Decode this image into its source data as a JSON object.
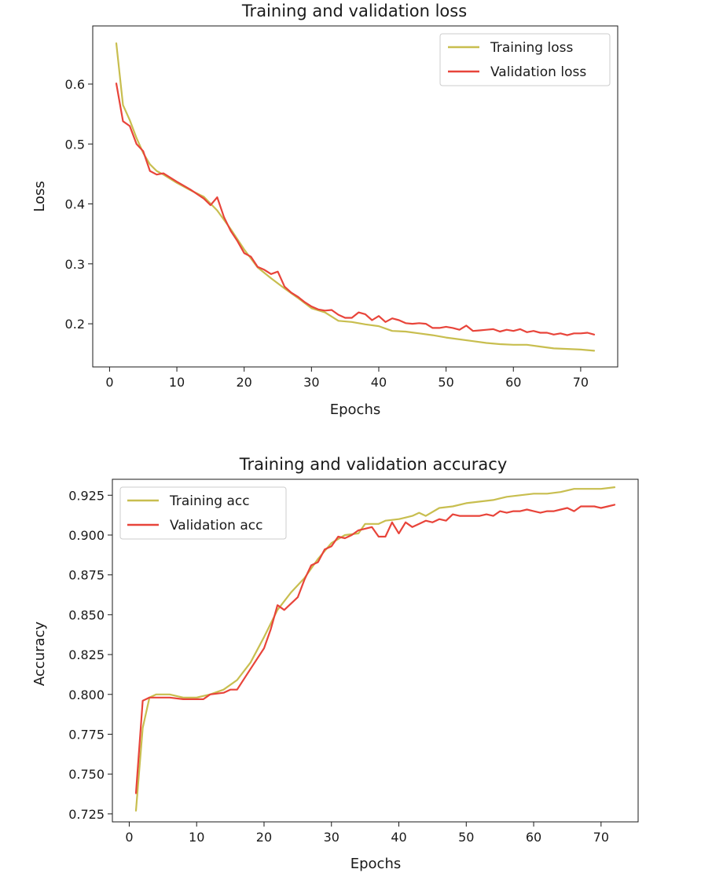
{
  "colors": {
    "training": "#c8be4f",
    "validation": "#e8443a",
    "frame": "#1a1a1a",
    "legend_border": "#cccccc"
  },
  "chart_data": [
    {
      "type": "line",
      "title": "Training and validation loss",
      "xlabel": "Epochs",
      "ylabel": "Loss",
      "xlim": [
        -2.5,
        75.5
      ],
      "ylim": [
        0.128,
        0.697
      ],
      "xticks": [
        0,
        10,
        20,
        30,
        40,
        50,
        60,
        70
      ],
      "yticks": [
        0.2,
        0.3,
        0.4,
        0.5,
        0.6
      ],
      "ytick_labels": [
        "0.2",
        "0.3",
        "0.4",
        "0.5",
        "0.6"
      ],
      "legend": "top-right",
      "grid": false,
      "series": [
        {
          "name": "Training loss",
          "color": "#c8be4f",
          "x": [
            1,
            2,
            3,
            4,
            5,
            6,
            7,
            8,
            10,
            12,
            14,
            16,
            18,
            20,
            22,
            24,
            26,
            28,
            30,
            32,
            34,
            36,
            38,
            40,
            42,
            44,
            46,
            48,
            50,
            52,
            54,
            56,
            58,
            60,
            62,
            64,
            66,
            68,
            70,
            72
          ],
          "y": [
            0.668,
            0.565,
            0.54,
            0.51,
            0.485,
            0.466,
            0.455,
            0.449,
            0.435,
            0.423,
            0.412,
            0.389,
            0.358,
            0.324,
            0.294,
            0.276,
            0.259,
            0.243,
            0.226,
            0.219,
            0.205,
            0.203,
            0.199,
            0.196,
            0.188,
            0.187,
            0.184,
            0.181,
            0.177,
            0.174,
            0.171,
            0.168,
            0.166,
            0.165,
            0.165,
            0.162,
            0.159,
            0.158,
            0.157,
            0.155
          ]
        },
        {
          "name": "Validation loss",
          "color": "#e8443a",
          "x": [
            1,
            2,
            3,
            4,
            5,
            6,
            7,
            8,
            10,
            12,
            14,
            15,
            16,
            17,
            18,
            19,
            20,
            21,
            22,
            23,
            24,
            25,
            26,
            27,
            28,
            29,
            30,
            31,
            32,
            33,
            34,
            35,
            36,
            37,
            38,
            39,
            40,
            41,
            42,
            43,
            44,
            45,
            46,
            47,
            48,
            49,
            50,
            51,
            52,
            53,
            54,
            55,
            56,
            57,
            58,
            59,
            60,
            61,
            62,
            63,
            64,
            65,
            66,
            67,
            68,
            69,
            70,
            71,
            72
          ],
          "y": [
            0.601,
            0.538,
            0.53,
            0.5,
            0.488,
            0.455,
            0.449,
            0.451,
            0.437,
            0.424,
            0.409,
            0.398,
            0.411,
            0.378,
            0.355,
            0.338,
            0.318,
            0.312,
            0.295,
            0.29,
            0.283,
            0.287,
            0.262,
            0.252,
            0.245,
            0.236,
            0.229,
            0.224,
            0.222,
            0.223,
            0.215,
            0.21,
            0.21,
            0.219,
            0.216,
            0.206,
            0.213,
            0.203,
            0.209,
            0.206,
            0.201,
            0.2,
            0.201,
            0.2,
            0.193,
            0.193,
            0.195,
            0.193,
            0.19,
            0.197,
            0.188,
            0.189,
            0.19,
            0.191,
            0.187,
            0.19,
            0.188,
            0.191,
            0.186,
            0.188,
            0.185,
            0.185,
            0.182,
            0.184,
            0.181,
            0.184,
            0.184,
            0.185,
            0.182
          ]
        }
      ]
    },
    {
      "type": "line",
      "title": "Training and validation accuracy",
      "xlabel": "Epochs",
      "ylabel": "Accuracy",
      "xlim": [
        -2.5,
        75.5
      ],
      "ylim": [
        0.72,
        0.935
      ],
      "xticks": [
        0,
        10,
        20,
        30,
        40,
        50,
        60,
        70
      ],
      "yticks": [
        0.725,
        0.75,
        0.775,
        0.8,
        0.825,
        0.85,
        0.875,
        0.9,
        0.925
      ],
      "ytick_labels": [
        "0.725",
        "0.750",
        "0.775",
        "0.800",
        "0.825",
        "0.850",
        "0.875",
        "0.900",
        "0.925"
      ],
      "legend": "top-left",
      "grid": false,
      "series": [
        {
          "name": "Training acc",
          "color": "#c8be4f",
          "x": [
            1,
            2,
            3,
            4,
            5,
            6,
            8,
            10,
            12,
            14,
            16,
            18,
            20,
            22,
            24,
            26,
            28,
            30,
            32,
            34,
            35,
            37,
            38,
            40,
            41,
            42,
            43,
            44,
            46,
            48,
            50,
            52,
            54,
            56,
            58,
            60,
            62,
            64,
            66,
            68,
            70,
            72
          ],
          "y": [
            0.727,
            0.779,
            0.798,
            0.8,
            0.8,
            0.8,
            0.798,
            0.798,
            0.8,
            0.803,
            0.809,
            0.82,
            0.836,
            0.853,
            0.864,
            0.873,
            0.885,
            0.895,
            0.9,
            0.901,
            0.907,
            0.907,
            0.909,
            0.91,
            0.911,
            0.912,
            0.914,
            0.912,
            0.917,
            0.918,
            0.92,
            0.921,
            0.922,
            0.924,
            0.925,
            0.926,
            0.926,
            0.927,
            0.929,
            0.929,
            0.929,
            0.93
          ]
        },
        {
          "name": "Validation acc",
          "color": "#e8443a",
          "x": [
            1,
            2,
            3,
            4,
            5,
            6,
            8,
            10,
            11,
            12,
            14,
            15,
            16,
            18,
            20,
            21,
            22,
            23,
            24,
            25,
            26,
            27,
            28,
            29,
            30,
            31,
            32,
            33,
            34,
            35,
            36,
            37,
            38,
            39,
            40,
            41,
            42,
            43,
            44,
            45,
            46,
            47,
            48,
            49,
            50,
            51,
            52,
            53,
            54,
            55,
            56,
            57,
            58,
            59,
            60,
            61,
            62,
            63,
            64,
            65,
            66,
            67,
            68,
            69,
            70,
            71,
            72
          ],
          "y": [
            0.738,
            0.796,
            0.798,
            0.798,
            0.798,
            0.798,
            0.797,
            0.797,
            0.797,
            0.8,
            0.801,
            0.803,
            0.803,
            0.816,
            0.829,
            0.841,
            0.856,
            0.853,
            0.857,
            0.861,
            0.872,
            0.881,
            0.883,
            0.891,
            0.893,
            0.899,
            0.898,
            0.9,
            0.903,
            0.904,
            0.905,
            0.899,
            0.899,
            0.908,
            0.901,
            0.908,
            0.905,
            0.907,
            0.909,
            0.908,
            0.91,
            0.909,
            0.913,
            0.912,
            0.912,
            0.912,
            0.912,
            0.913,
            0.912,
            0.915,
            0.914,
            0.915,
            0.915,
            0.916,
            0.915,
            0.914,
            0.915,
            0.915,
            0.916,
            0.917,
            0.915,
            0.918,
            0.918,
            0.918,
            0.917,
            0.918,
            0.919
          ]
        }
      ]
    }
  ]
}
